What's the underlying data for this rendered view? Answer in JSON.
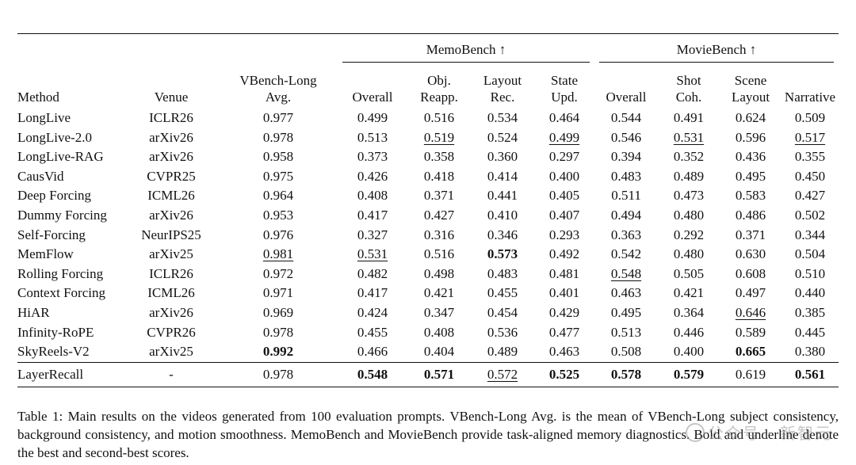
{
  "table": {
    "groups": {
      "memobench": "MemoBench ↑",
      "moviebench": "MovieBench ↑"
    },
    "headers": {
      "method": "Method",
      "venue": "Venue",
      "vbench_line1": "VBench-Long",
      "vbench_line2": "Avg.",
      "memo_overall": "Overall",
      "memo_obj_line1": "Obj.",
      "memo_obj_line2": "Reapp.",
      "memo_layout_line1": "Layout",
      "memo_layout_line2": "Rec.",
      "memo_state_line1": "State",
      "memo_state_line2": "Upd.",
      "movie_overall": "Overall",
      "movie_shot_line1": "Shot",
      "movie_shot_line2": "Coh.",
      "movie_scene_line1": "Scene",
      "movie_scene_line2": "Layout",
      "movie_narrative": "Narrative"
    },
    "rows": [
      {
        "method": "LongLive",
        "venue": "ICLR26",
        "values": [
          "0.977",
          "0.499",
          "0.516",
          "0.534",
          "0.464",
          "0.544",
          "0.491",
          "0.624",
          "0.509"
        ]
      },
      {
        "method": "LongLive-2.0",
        "venue": "arXiv26",
        "values": [
          "0.978",
          "0.513",
          "0.519",
          "0.524",
          "0.499",
          "0.546",
          "0.531",
          "0.596",
          "0.517"
        ]
      },
      {
        "method": "LongLive-RAG",
        "venue": "arXiv26",
        "values": [
          "0.958",
          "0.373",
          "0.358",
          "0.360",
          "0.297",
          "0.394",
          "0.352",
          "0.436",
          "0.355"
        ]
      },
      {
        "method": "CausVid",
        "venue": "CVPR25",
        "values": [
          "0.975",
          "0.426",
          "0.418",
          "0.414",
          "0.400",
          "0.483",
          "0.489",
          "0.495",
          "0.450"
        ]
      },
      {
        "method": "Deep Forcing",
        "venue": "ICML26",
        "values": [
          "0.964",
          "0.408",
          "0.371",
          "0.441",
          "0.405",
          "0.511",
          "0.473",
          "0.583",
          "0.427"
        ]
      },
      {
        "method": "Dummy Forcing",
        "venue": "arXiv26",
        "values": [
          "0.953",
          "0.417",
          "0.427",
          "0.410",
          "0.407",
          "0.494",
          "0.480",
          "0.486",
          "0.502"
        ]
      },
      {
        "method": "Self-Forcing",
        "venue": "NeurIPS25",
        "values": [
          "0.976",
          "0.327",
          "0.316",
          "0.346",
          "0.293",
          "0.363",
          "0.292",
          "0.371",
          "0.344"
        ]
      },
      {
        "method": "MemFlow",
        "venue": "arXiv25",
        "values": [
          "0.981",
          "0.531",
          "0.516",
          "0.573",
          "0.492",
          "0.542",
          "0.480",
          "0.630",
          "0.504"
        ]
      },
      {
        "method": "Rolling Forcing",
        "venue": "ICLR26",
        "values": [
          "0.972",
          "0.482",
          "0.498",
          "0.483",
          "0.481",
          "0.548",
          "0.505",
          "0.608",
          "0.510"
        ]
      },
      {
        "method": "Context Forcing",
        "venue": "ICML26",
        "values": [
          "0.971",
          "0.417",
          "0.421",
          "0.455",
          "0.401",
          "0.463",
          "0.421",
          "0.497",
          "0.440"
        ]
      },
      {
        "method": "HiAR",
        "venue": "arXiv26",
        "values": [
          "0.969",
          "0.424",
          "0.347",
          "0.454",
          "0.429",
          "0.495",
          "0.364",
          "0.646",
          "0.385"
        ]
      },
      {
        "method": "Infinity-RoPE",
        "venue": "CVPR26",
        "values": [
          "0.978",
          "0.455",
          "0.408",
          "0.536",
          "0.477",
          "0.513",
          "0.446",
          "0.589",
          "0.445"
        ]
      },
      {
        "method": "SkyReels-V2",
        "venue": "arXiv25",
        "values": [
          "0.992",
          "0.466",
          "0.404",
          "0.489",
          "0.463",
          "0.508",
          "0.400",
          "0.665",
          "0.380"
        ]
      }
    ],
    "ours": {
      "method": "LayerRecall",
      "venue": "-",
      "values": [
        "0.978",
        "0.548",
        "0.571",
        "0.572",
        "0.525",
        "0.578",
        "0.579",
        "0.619",
        "0.561"
      ]
    }
  },
  "caption": "Table 1: Main results on the videos generated from 100 evaluation prompts. VBench-Long Avg. is the mean of VBench-Long subject consistency, background consistency, and motion smoothness. MemoBench and MovieBench provide task-aligned memory diagnostics. Bold and underline denote the best and second-best scores.",
  "watermark": "公众号 · 新智元"
}
